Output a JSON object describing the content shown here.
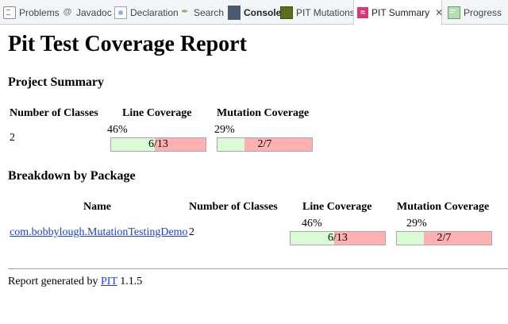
{
  "tabs": [
    {
      "label": "Problems",
      "icon": "problems-icon"
    },
    {
      "label": "Javadoc",
      "icon": "at-icon"
    },
    {
      "label": "Declaration",
      "icon": "declaration-icon"
    },
    {
      "label": "Search",
      "icon": "search-icon"
    },
    {
      "label": "Console",
      "icon": "console-icon"
    },
    {
      "label": "PIT Mutations",
      "icon": "pit-mutations-icon"
    },
    {
      "label": "PIT Summary",
      "icon": "pit-summary-icon",
      "active": true,
      "close": "✕"
    },
    {
      "label": "Progress",
      "icon": "progress-icon"
    }
  ],
  "report": {
    "title": "Pit Test Coverage Report",
    "project_summary": {
      "heading": "Project Summary",
      "headers": [
        "Number of Classes",
        "Line Coverage",
        "Mutation Coverage"
      ],
      "classes": "2",
      "line": {
        "percent": "46%",
        "covered": 6,
        "total": 13,
        "label": "6/13"
      },
      "mutation": {
        "percent": "29%",
        "covered": 2,
        "total": 7,
        "label": "2/7"
      }
    },
    "breakdown": {
      "heading": "Breakdown by Package",
      "headers": [
        "Name",
        "Number of Classes",
        "Line Coverage",
        "Mutation Coverage"
      ],
      "rows": [
        {
          "name": "com.bobbylough.MutationTestingDemo",
          "classes": "2",
          "line": {
            "percent": "46%",
            "covered": 6,
            "total": 13,
            "label": "6/13"
          },
          "mutation": {
            "percent": "29%",
            "covered": 2,
            "total": 7,
            "label": "2/7"
          }
        }
      ]
    },
    "footer": {
      "prefix": "Report generated by",
      "link": "PIT",
      "version": "1.1.5"
    }
  },
  "colors": {
    "covered": "#dbfbd7",
    "uncovered": "#ffb0b0"
  }
}
